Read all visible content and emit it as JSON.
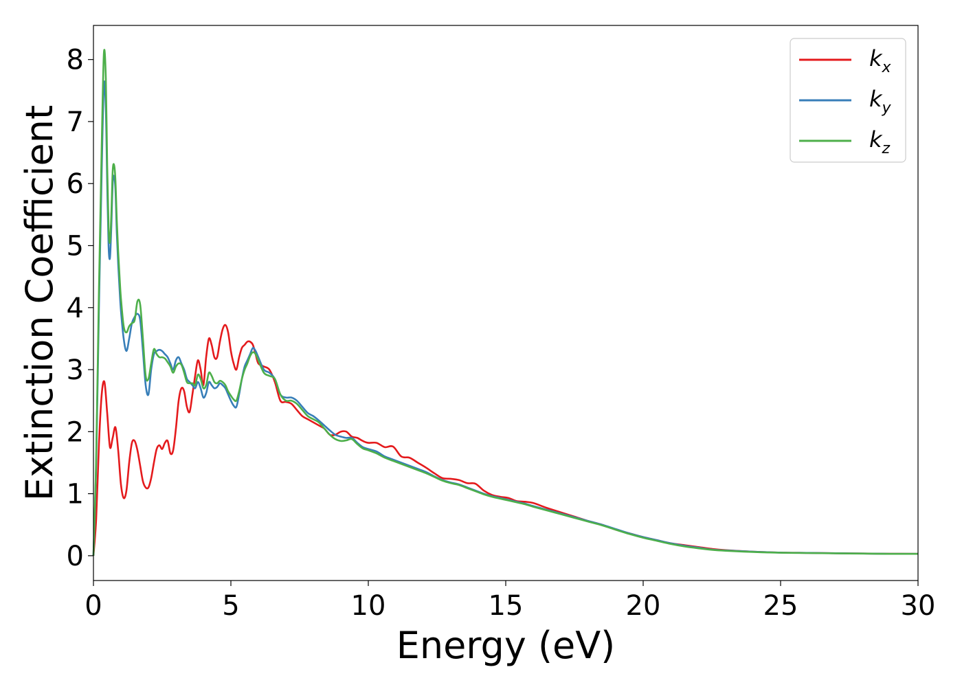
{
  "chart_data": {
    "type": "line",
    "title": "",
    "xlabel": "Energy (eV)",
    "ylabel": "Extinction Coefficient",
    "xlim": [
      0,
      30
    ],
    "ylim": [
      -0.4,
      8.55
    ],
    "xticks": [
      0,
      5,
      10,
      15,
      20,
      25,
      30
    ],
    "xtick_labels": [
      "0",
      "5",
      "10",
      "15",
      "20",
      "25",
      "30"
    ],
    "yticks": [
      0,
      1,
      2,
      3,
      4,
      5,
      6,
      7,
      8
    ],
    "ytick_labels": [
      "0",
      "1",
      "2",
      "3",
      "4",
      "5",
      "6",
      "7",
      "8"
    ],
    "grid": false,
    "legend_position": "top-right",
    "series": [
      {
        "name": "k_x",
        "legend_main": "k",
        "legend_sub": "x",
        "color": "#e41a1c",
        "x": [
          0,
          0.1,
          0.2,
          0.3,
          0.4,
          0.5,
          0.6,
          0.7,
          0.8,
          0.9,
          1.0,
          1.1,
          1.2,
          1.3,
          1.4,
          1.5,
          1.6,
          1.7,
          1.8,
          1.9,
          2.0,
          2.1,
          2.2,
          2.3,
          2.4,
          2.5,
          2.6,
          2.7,
          2.8,
          2.9,
          3.0,
          3.1,
          3.2,
          3.3,
          3.4,
          3.5,
          3.6,
          3.7,
          3.8,
          3.9,
          4.0,
          4.1,
          4.2,
          4.3,
          4.4,
          4.5,
          4.6,
          4.7,
          4.8,
          4.9,
          5.0,
          5.1,
          5.2,
          5.3,
          5.4,
          5.5,
          5.6,
          5.7,
          5.8,
          5.9,
          6.0,
          6.2,
          6.4,
          6.6,
          6.8,
          7.0,
          7.2,
          7.4,
          7.6,
          7.8,
          8.0,
          8.2,
          8.4,
          8.6,
          8.8,
          9.0,
          9.2,
          9.4,
          9.6,
          9.8,
          10.0,
          10.3,
          10.6,
          10.9,
          11.2,
          11.5,
          11.8,
          12.1,
          12.4,
          12.7,
          13.0,
          13.3,
          13.6,
          13.9,
          14.2,
          14.5,
          14.8,
          15.1,
          15.4,
          15.7,
          16.0,
          16.5,
          17.0,
          17.5,
          18.0,
          18.5,
          19.0,
          19.5,
          20.0,
          20.5,
          21.0,
          21.5,
          22.0,
          22.5,
          23.0,
          24.0,
          25.0,
          26.0,
          27.0,
          28.0,
          29.0,
          30.0
        ],
        "y": [
          0.0,
          0.6,
          1.8,
          2.6,
          2.8,
          2.3,
          1.75,
          1.9,
          2.07,
          1.7,
          1.15,
          0.93,
          1.05,
          1.5,
          1.82,
          1.85,
          1.7,
          1.45,
          1.2,
          1.1,
          1.1,
          1.25,
          1.5,
          1.72,
          1.78,
          1.72,
          1.82,
          1.85,
          1.65,
          1.7,
          2.05,
          2.5,
          2.7,
          2.65,
          2.4,
          2.32,
          2.6,
          2.9,
          3.15,
          3.0,
          2.75,
          3.2,
          3.5,
          3.4,
          3.2,
          3.2,
          3.45,
          3.65,
          3.72,
          3.6,
          3.3,
          3.1,
          3.0,
          3.2,
          3.35,
          3.4,
          3.45,
          3.45,
          3.4,
          3.25,
          3.1,
          3.05,
          3.0,
          2.8,
          2.5,
          2.48,
          2.45,
          2.35,
          2.25,
          2.2,
          2.15,
          2.1,
          2.05,
          1.95,
          1.95,
          2.0,
          2.0,
          1.92,
          1.9,
          1.85,
          1.82,
          1.82,
          1.75,
          1.76,
          1.6,
          1.58,
          1.5,
          1.42,
          1.33,
          1.25,
          1.24,
          1.22,
          1.17,
          1.16,
          1.05,
          0.98,
          0.95,
          0.93,
          0.88,
          0.87,
          0.85,
          0.77,
          0.7,
          0.63,
          0.56,
          0.5,
          0.42,
          0.36,
          0.3,
          0.25,
          0.2,
          0.17,
          0.14,
          0.11,
          0.09,
          0.065,
          0.05,
          0.045,
          0.04,
          0.035,
          0.032,
          0.03
        ]
      },
      {
        "name": "k_y",
        "legend_main": "k",
        "legend_sub": "y",
        "color": "#377eb8",
        "x": [
          0,
          0.1,
          0.2,
          0.3,
          0.38,
          0.45,
          0.5,
          0.55,
          0.6,
          0.65,
          0.7,
          0.75,
          0.8,
          0.85,
          0.9,
          0.95,
          1.0,
          1.1,
          1.2,
          1.3,
          1.4,
          1.5,
          1.6,
          1.7,
          1.8,
          1.9,
          2.0,
          2.1,
          2.2,
          2.3,
          2.4,
          2.5,
          2.6,
          2.7,
          2.8,
          2.9,
          3.0,
          3.1,
          3.2,
          3.3,
          3.4,
          3.5,
          3.6,
          3.7,
          3.8,
          3.9,
          4.0,
          4.1,
          4.2,
          4.3,
          4.4,
          4.5,
          4.6,
          4.7,
          4.8,
          4.9,
          5.0,
          5.1,
          5.2,
          5.3,
          5.4,
          5.5,
          5.6,
          5.7,
          5.8,
          5.9,
          6.0,
          6.2,
          6.4,
          6.6,
          6.8,
          7.0,
          7.2,
          7.4,
          7.6,
          7.8,
          8.0,
          8.2,
          8.4,
          8.6,
          8.8,
          9.0,
          9.2,
          9.4,
          9.6,
          9.8,
          10.0,
          10.3,
          10.6,
          10.9,
          11.2,
          11.5,
          11.8,
          12.1,
          12.4,
          12.7,
          13.0,
          13.3,
          13.6,
          13.9,
          14.2,
          14.5,
          14.8,
          15.1,
          15.4,
          15.7,
          16.0,
          16.5,
          17.0,
          17.5,
          18.0,
          18.5,
          19.0,
          19.5,
          20.0,
          20.5,
          21.0,
          21.5,
          22.0,
          22.5,
          23.0,
          24.0,
          25.0,
          26.0,
          27.0,
          28.0,
          29.0,
          30.0
        ],
        "y": [
          0.0,
          1.5,
          4.0,
          6.2,
          7.6,
          7.2,
          6.0,
          5.0,
          4.8,
          5.3,
          6.0,
          6.12,
          5.9,
          5.2,
          4.7,
          4.3,
          3.95,
          3.5,
          3.3,
          3.5,
          3.75,
          3.85,
          3.9,
          3.8,
          3.3,
          2.75,
          2.6,
          3.0,
          3.25,
          3.3,
          3.32,
          3.3,
          3.25,
          3.2,
          3.1,
          3.0,
          3.15,
          3.2,
          3.1,
          3.0,
          2.85,
          2.8,
          2.75,
          2.7,
          2.8,
          2.7,
          2.55,
          2.62,
          2.8,
          2.75,
          2.7,
          2.72,
          2.78,
          2.75,
          2.7,
          2.6,
          2.5,
          2.42,
          2.4,
          2.6,
          2.85,
          3.05,
          3.15,
          3.25,
          3.35,
          3.3,
          3.2,
          3.0,
          2.95,
          2.85,
          2.6,
          2.55,
          2.55,
          2.5,
          2.4,
          2.3,
          2.25,
          2.18,
          2.1,
          2.02,
          1.95,
          1.92,
          1.9,
          1.9,
          1.82,
          1.75,
          1.72,
          1.68,
          1.6,
          1.55,
          1.5,
          1.45,
          1.4,
          1.35,
          1.28,
          1.22,
          1.18,
          1.15,
          1.1,
          1.05,
          1.0,
          0.96,
          0.93,
          0.9,
          0.87,
          0.84,
          0.8,
          0.74,
          0.68,
          0.62,
          0.56,
          0.5,
          0.43,
          0.36,
          0.3,
          0.25,
          0.2,
          0.16,
          0.13,
          0.1,
          0.085,
          0.065,
          0.05,
          0.045,
          0.04,
          0.035,
          0.03,
          0.03
        ]
      },
      {
        "name": "k_z",
        "legend_main": "k",
        "legend_sub": "z",
        "color": "#4daf4a",
        "x": [
          0,
          0.1,
          0.2,
          0.3,
          0.38,
          0.45,
          0.5,
          0.55,
          0.6,
          0.65,
          0.7,
          0.75,
          0.8,
          0.85,
          0.9,
          0.95,
          1.0,
          1.1,
          1.2,
          1.3,
          1.4,
          1.5,
          1.6,
          1.7,
          1.8,
          1.9,
          2.0,
          2.1,
          2.2,
          2.3,
          2.4,
          2.5,
          2.6,
          2.7,
          2.8,
          2.9,
          3.0,
          3.1,
          3.2,
          3.3,
          3.4,
          3.5,
          3.6,
          3.7,
          3.8,
          3.9,
          4.0,
          4.1,
          4.2,
          4.3,
          4.4,
          4.5,
          4.6,
          4.7,
          4.8,
          4.9,
          5.0,
          5.1,
          5.2,
          5.3,
          5.4,
          5.5,
          5.6,
          5.7,
          5.8,
          5.9,
          6.0,
          6.2,
          6.4,
          6.6,
          6.8,
          7.0,
          7.2,
          7.4,
          7.6,
          7.8,
          8.0,
          8.2,
          8.4,
          8.6,
          8.8,
          9.0,
          9.2,
          9.4,
          9.6,
          9.8,
          10.0,
          10.3,
          10.6,
          10.9,
          11.2,
          11.5,
          11.8,
          12.1,
          12.4,
          12.7,
          13.0,
          13.3,
          13.6,
          13.9,
          14.2,
          14.5,
          14.8,
          15.1,
          15.4,
          15.7,
          16.0,
          16.5,
          17.0,
          17.5,
          18.0,
          18.5,
          19.0,
          19.5,
          20.0,
          20.5,
          21.0,
          21.5,
          22.0,
          22.5,
          23.0,
          24.0,
          25.0,
          26.0,
          27.0,
          28.0,
          29.0,
          30.0
        ],
        "y": [
          0.0,
          1.6,
          4.3,
          6.6,
          8.1,
          7.7,
          6.3,
          5.3,
          5.05,
          5.5,
          6.2,
          6.3,
          6.05,
          5.4,
          4.9,
          4.5,
          4.15,
          3.7,
          3.6,
          3.7,
          3.75,
          3.8,
          4.1,
          4.05,
          3.5,
          2.9,
          2.85,
          3.1,
          3.33,
          3.25,
          3.2,
          3.2,
          3.18,
          3.12,
          3.05,
          2.95,
          3.05,
          3.1,
          3.08,
          2.95,
          2.8,
          2.78,
          2.78,
          2.75,
          2.92,
          2.85,
          2.7,
          2.75,
          2.95,
          2.9,
          2.8,
          2.78,
          2.82,
          2.8,
          2.75,
          2.65,
          2.58,
          2.52,
          2.5,
          2.65,
          2.85,
          3.0,
          3.1,
          3.22,
          3.28,
          3.25,
          3.15,
          2.95,
          2.9,
          2.85,
          2.6,
          2.5,
          2.5,
          2.45,
          2.35,
          2.25,
          2.2,
          2.15,
          2.05,
          1.95,
          1.88,
          1.85,
          1.86,
          1.88,
          1.8,
          1.73,
          1.7,
          1.65,
          1.58,
          1.53,
          1.48,
          1.43,
          1.38,
          1.33,
          1.27,
          1.21,
          1.17,
          1.14,
          1.09,
          1.04,
          0.99,
          0.95,
          0.92,
          0.89,
          0.86,
          0.83,
          0.79,
          0.73,
          0.67,
          0.61,
          0.55,
          0.49,
          0.42,
          0.35,
          0.29,
          0.24,
          0.19,
          0.15,
          0.12,
          0.095,
          0.08,
          0.06,
          0.048,
          0.043,
          0.038,
          0.034,
          0.03,
          0.03
        ]
      }
    ]
  }
}
